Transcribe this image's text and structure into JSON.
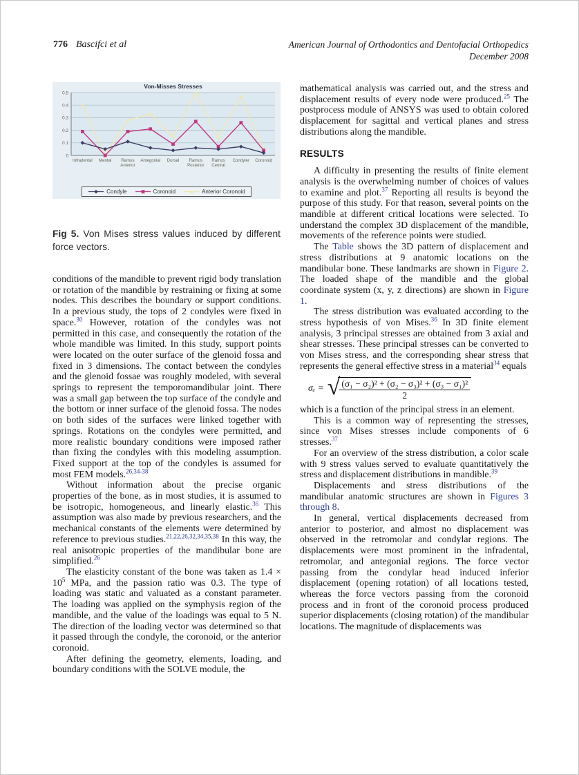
{
  "header": {
    "page_number": "776",
    "authors": "Bascifci et al",
    "journal_line1": "American Journal of Orthodontics and Dentofacial Orthopedics",
    "journal_line2": "December 2008"
  },
  "figure": {
    "caption_label": "Fig 5.",
    "caption_text": " Von Mises stress values induced by different force vectors."
  },
  "chart_data": {
    "type": "line",
    "title": "Von-Misses Stresses",
    "categories": [
      "Infradental",
      "Mental",
      "Ramus Anterior",
      "Antegonial",
      "Dorsal",
      "Ramus Posterior",
      "Ramus Central",
      "Condyler",
      "Coronoid"
    ],
    "series": [
      {
        "name": "Condyle",
        "color": "#3b3b63",
        "marker": "diamond",
        "values": [
          0.1,
          0.05,
          0.11,
          0.06,
          0.04,
          0.06,
          0.05,
          0.07,
          0.02
        ]
      },
      {
        "name": "Coronoid",
        "color": "#c2367f",
        "marker": "square",
        "values": [
          0.19,
          0.0,
          0.19,
          0.21,
          0.09,
          0.27,
          0.07,
          0.26,
          0.04
        ]
      },
      {
        "name": "Anterior Coronoid",
        "color": "#efe7ae",
        "marker": "triangle",
        "values": [
          0.4,
          0.0,
          0.28,
          0.33,
          0.15,
          0.5,
          0.14,
          0.47,
          0.05
        ]
      }
    ],
    "xlabel": "",
    "ylabel": "",
    "ylim": [
      0,
      0.5
    ],
    "yticks": [
      0,
      0.1,
      0.2,
      0.3,
      0.4,
      0.5
    ],
    "grid": true,
    "legend_position": "bottom",
    "figure_bg": "#e7eef4",
    "plot_bg": "#dde9f1"
  },
  "left_column": {
    "blocks": [
      {
        "kind": "p",
        "indent": false,
        "segments": [
          {
            "t": "conditions of the mandible to prevent rigid body translation or rotation of the mandible by restraining or fixing at some nodes. This describes the boundary or support conditions. In a previous study, the tops of 2 condyles were fixed in space."
          },
          {
            "t": "30",
            "s": "sup"
          },
          {
            "t": " However, rotation of the condyles was not permitted in this case, and consequently the rotation of the whole mandible was limited. In this study, support points were located on the outer surface of the glenoid fossa and fixed in 3 dimensions. The contact between the condyles and the glenoid fossae was roughly modeled, with several springs to represent the temporomandibular joint. There was a small gap between the top surface of the condyle and the bottom or inner surface of the glenoid fossa. The nodes on both sides of the surfaces were linked together with springs. Rotations on the condyles were permitted, and more realistic boundary conditions were imposed rather than fixing the condyles with this modeling assumption. Fixed support at the top of the condyles is assumed for most FEM models."
          },
          {
            "t": "26,34-38",
            "s": "sup"
          }
        ]
      },
      {
        "kind": "p",
        "indent": true,
        "segments": [
          {
            "t": "Without information about the precise organic properties of the bone, as in most studies, it is assumed to be isotropic, homogeneous, and linearly elastic."
          },
          {
            "t": "36",
            "s": "sup"
          },
          {
            "t": " This assumption was also made by previous researchers, and the mechanical constants of the elements were determined by reference to previous studies."
          },
          {
            "t": "21,22,26,32,34,35,38",
            "s": "sup"
          },
          {
            "t": " In this way, the real anisotropic properties of the mandibular bone are simplified."
          },
          {
            "t": "26",
            "s": "sup"
          }
        ]
      },
      {
        "kind": "p",
        "indent": true,
        "segments": [
          {
            "t": "The elasticity constant of the bone was taken as 1.4 × 10"
          },
          {
            "t": "5",
            "s": "msup"
          },
          {
            "t": " MPa, and the passion ratio was 0.3. The type of loading was static and valuated as a constant parameter. The loading was applied on the symphysis region of the mandible, and the value of the loadings was equal to 5 N. The direction of the loading vector was determined so that it passed through the condyle, the coronoid, or the anterior coronoid."
          }
        ]
      },
      {
        "kind": "p",
        "indent": true,
        "segments": [
          {
            "t": "After defining the geometry, elements, loading, and boundary conditions with the SOLVE module, the"
          }
        ]
      }
    ]
  },
  "right_column": {
    "blocks": [
      {
        "kind": "p",
        "indent": false,
        "segments": [
          {
            "t": "mathematical analysis was carried out, and the stress and displacement results of every node were produced."
          },
          {
            "t": "25",
            "s": "sup"
          },
          {
            "t": " The postprocess module of ANSYS was used to obtain colored displacement for sagittal and vertical planes and stress distributions along the mandible."
          }
        ]
      },
      {
        "kind": "h",
        "text": "RESULTS"
      },
      {
        "kind": "p",
        "indent": true,
        "segments": [
          {
            "t": "A difficulty in presenting the results of finite element analysis is the overwhelming number of choices of values to examine and plot."
          },
          {
            "t": "37",
            "s": "sup"
          },
          {
            "t": " Reporting all results is beyond the purpose of this study. For that reason, several points on the mandible at different critical locations were selected. To understand the complex 3D displacement of the mandible, movements of the reference points were studied."
          }
        ]
      },
      {
        "kind": "p",
        "indent": true,
        "segments": [
          {
            "t": "The "
          },
          {
            "t": "Table",
            "s": "link"
          },
          {
            "t": " shows the 3D pattern of displacement and stress distributions at 9 anatomic locations on the mandibular bone. These landmarks are shown in "
          },
          {
            "t": "Figure 2",
            "s": "link"
          },
          {
            "t": ". The loaded shape of the mandible and the global coordinate system (x, y, z directions) are shown in "
          },
          {
            "t": "Figure 1",
            "s": "link"
          },
          {
            "t": "."
          }
        ]
      },
      {
        "kind": "p",
        "indent": true,
        "segments": [
          {
            "t": "The stress distribution was evaluated according to the stress hypothesis of von Mises."
          },
          {
            "t": "36",
            "s": "sup"
          },
          {
            "t": " In 3D finite element analysis, 3 principal stresses are obtained from 3 axial and shear stresses. These principal stresses can be converted to von Mises stress, and the corresponding shear stress that represents the general effective stress in a material"
          },
          {
            "t": "34",
            "s": "sup"
          },
          {
            "t": " equals"
          }
        ]
      },
      {
        "kind": "formula",
        "lhs": "σₑ =",
        "radical": "√",
        "numerator": "(σ₁ − σ₂)² + (σ₂ − σ₃)² + (σ₃ − σ₁)²",
        "denominator": "2"
      },
      {
        "kind": "p",
        "indent": false,
        "segments": [
          {
            "t": "which is a function of the principal stress in an element."
          }
        ]
      },
      {
        "kind": "p",
        "indent": true,
        "segments": [
          {
            "t": "This is a common way of representing the stresses, since von Mises stresses include components of 6 stresses."
          },
          {
            "t": "37",
            "s": "sup"
          }
        ]
      },
      {
        "kind": "p",
        "indent": true,
        "segments": [
          {
            "t": "For an overview of the stress distribution, a color scale with 9 stress values served to evaluate quantitatively the stress and displacement distributions in mandible."
          },
          {
            "t": "39",
            "s": "sup"
          }
        ]
      },
      {
        "kind": "p",
        "indent": true,
        "segments": [
          {
            "t": "Displacements and stress distributions of the mandibular anatomic structures are shown in "
          },
          {
            "t": "Figures 3 through 8",
            "s": "link"
          },
          {
            "t": "."
          }
        ]
      },
      {
        "kind": "p",
        "indent": true,
        "segments": [
          {
            "t": "In general, vertical displacements decreased from anterior to posterior, and almost no displacement was observed in the retromolar and condylar regions. The displacements were most prominent in the infradental, retromolar, and antegonial regions. The force vector passing from the condylar head induced inferior displacement (opening rotation) of all locations tested, whereas the force vectors passing from the coronoid process and in front of the coronoid process produced superior displacements (closing rotation) of the mandibular locations. The magnitude of displacements was"
          }
        ]
      }
    ]
  }
}
